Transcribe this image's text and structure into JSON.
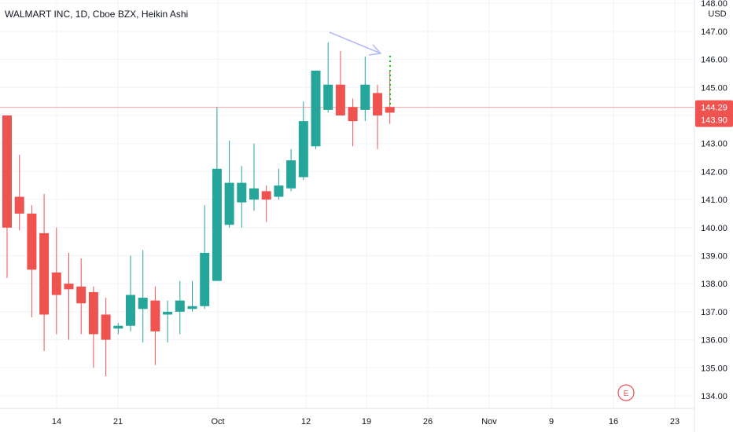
{
  "header": {
    "title": "WALMART INC, 1D, Cboe BZX, Heikin Ashi"
  },
  "price_axis": {
    "currency": "USD",
    "labels": [
      "134.00",
      "135.00",
      "136.00",
      "137.00",
      "138.00",
      "139.00",
      "140.00",
      "141.00",
      "142.00",
      "143.00",
      "144.00",
      "145.00",
      "146.00",
      "147.00",
      "148.00"
    ]
  },
  "time_axis": {
    "labels": [
      "14",
      "21",
      "Oct",
      "12",
      "19",
      "26",
      "Nov",
      "9",
      "16",
      "23"
    ]
  },
  "price_tags": {
    "last": "144.29",
    "close": "143.90"
  },
  "earnings_badge": "E",
  "colors": {
    "up": "#26a69a",
    "down": "#ef5350",
    "grid": "#f0f3fa",
    "price_line": "#f7a7a6",
    "forecast": "#00d000",
    "arrow": "#b3b9f7"
  },
  "chart_data": {
    "type": "candlestick",
    "style": "Heikin Ashi",
    "symbol": "WALMART INC",
    "interval": "1D",
    "exchange": "Cboe BZX",
    "currency": "USD",
    "ylim": [
      133.6,
      148.2
    ],
    "grid": true,
    "last_price": 144.29,
    "close_price": 143.9,
    "candles": [
      {
        "o": 144.0,
        "h": 144.0,
        "l": 138.2,
        "c": 140.0
      },
      {
        "o": 141.1,
        "h": 142.6,
        "l": 139.9,
        "c": 140.5
      },
      {
        "o": 140.5,
        "h": 140.8,
        "l": 136.8,
        "c": 138.5
      },
      {
        "o": 139.8,
        "h": 141.2,
        "l": 135.6,
        "c": 136.9
      },
      {
        "o": 138.4,
        "h": 140.0,
        "l": 136.2,
        "c": 137.6
      },
      {
        "o": 138.0,
        "h": 139.1,
        "l": 136.0,
        "c": 137.8
      },
      {
        "o": 137.9,
        "h": 138.9,
        "l": 136.2,
        "c": 137.3
      },
      {
        "o": 137.7,
        "h": 137.9,
        "l": 135.0,
        "c": 136.2
      },
      {
        "o": 136.9,
        "h": 137.5,
        "l": 134.7,
        "c": 136.0
      },
      {
        "o": 136.4,
        "h": 136.6,
        "l": 136.2,
        "c": 136.5
      },
      {
        "o": 136.5,
        "h": 139.0,
        "l": 136.3,
        "c": 137.6
      },
      {
        "o": 137.1,
        "h": 139.2,
        "l": 135.9,
        "c": 137.5
      },
      {
        "o": 137.4,
        "h": 137.9,
        "l": 135.1,
        "c": 136.3
      },
      {
        "o": 136.9,
        "h": 137.4,
        "l": 135.9,
        "c": 137.0
      },
      {
        "o": 137.0,
        "h": 138.1,
        "l": 136.2,
        "c": 137.4
      },
      {
        "o": 137.1,
        "h": 138.1,
        "l": 137.0,
        "c": 137.2
      },
      {
        "o": 137.2,
        "h": 140.8,
        "l": 137.1,
        "c": 139.1
      },
      {
        "o": 138.1,
        "h": 144.3,
        "l": 138.1,
        "c": 142.1
      },
      {
        "o": 140.1,
        "h": 143.1,
        "l": 140.0,
        "c": 141.6
      },
      {
        "o": 140.9,
        "h": 142.2,
        "l": 140.0,
        "c": 141.6
      },
      {
        "o": 141.0,
        "h": 143.0,
        "l": 140.6,
        "c": 141.4
      },
      {
        "o": 141.3,
        "h": 141.5,
        "l": 140.2,
        "c": 141.0
      },
      {
        "o": 141.1,
        "h": 142.1,
        "l": 141.0,
        "c": 141.5
      },
      {
        "o": 141.4,
        "h": 142.8,
        "l": 141.3,
        "c": 142.4
      },
      {
        "o": 141.8,
        "h": 144.5,
        "l": 141.7,
        "c": 143.8
      },
      {
        "o": 142.9,
        "h": 145.6,
        "l": 142.8,
        "c": 145.6
      },
      {
        "o": 144.2,
        "h": 146.6,
        "l": 144.1,
        "c": 145.1
      },
      {
        "o": 145.1,
        "h": 146.3,
        "l": 144.0,
        "c": 144.0
      },
      {
        "o": 144.3,
        "h": 144.6,
        "l": 142.9,
        "c": 143.8
      },
      {
        "o": 144.2,
        "h": 146.1,
        "l": 143.8,
        "c": 145.1
      },
      {
        "o": 144.8,
        "h": 145.1,
        "l": 142.8,
        "c": 144.0
      },
      {
        "o": 144.3,
        "h": 145.6,
        "l": 143.7,
        "c": 144.1
      }
    ]
  }
}
